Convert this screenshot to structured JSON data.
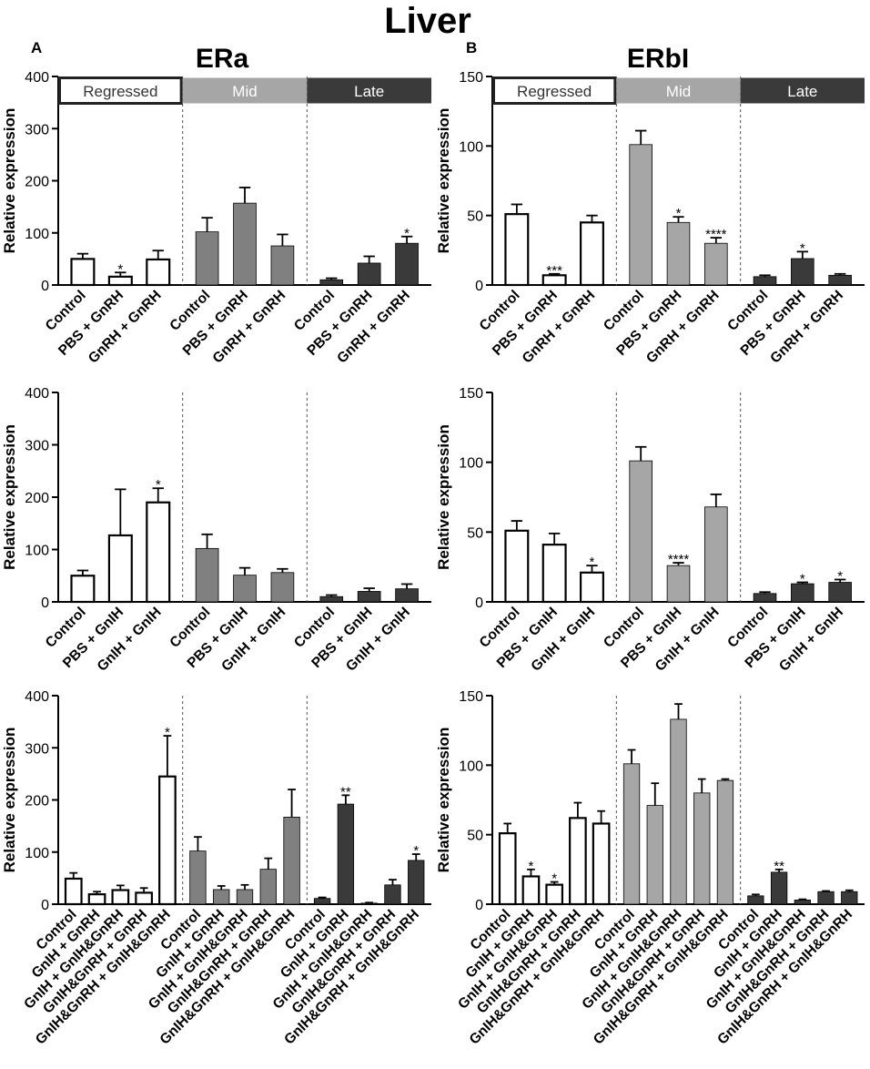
{
  "figure": {
    "title": "Liver",
    "panel_a": {
      "letter": "A",
      "title": "ERa"
    },
    "panel_b": {
      "letter": "B",
      "title": "ERbI"
    }
  },
  "stages": [
    {
      "label": "Regressed",
      "fill": "#ffffff",
      "text": "#333333"
    },
    {
      "label": "Mid",
      "fill": "#a6a6a6",
      "text": "#ffffff"
    },
    {
      "label": "Late",
      "fill": "#3a3a3a",
      "text": "#ffffff"
    }
  ],
  "colors": {
    "regressed_bar": "#ffffff",
    "era_mid_bar": "#808080",
    "erbi_mid_bar": "#a6a6a6",
    "late_bar": "#3a3a3a",
    "stroke": "#000000"
  },
  "chart_data": [
    {
      "id": "era-gnrh",
      "type": "bar",
      "title": "ERa",
      "ylabel": "Relative expression",
      "ylim": [
        0,
        400
      ],
      "yticks": [
        0,
        100,
        200,
        300,
        400
      ],
      "show_stage_header": true,
      "categories": [
        "Control",
        "PBS + GnRH",
        "GnRH + GnRH"
      ],
      "groups": [
        {
          "stage": "Regressed",
          "values": [
            50,
            16,
            49
          ],
          "errors": [
            10,
            8,
            17
          ],
          "sig": [
            "",
            "*",
            ""
          ]
        },
        {
          "stage": "Mid",
          "values": [
            102,
            157,
            75
          ],
          "errors": [
            27,
            30,
            22
          ],
          "sig": [
            "",
            "",
            ""
          ]
        },
        {
          "stage": "Late",
          "values": [
            10,
            42,
            80
          ],
          "errors": [
            3,
            13,
            13
          ],
          "sig": [
            "",
            "",
            "*"
          ]
        }
      ]
    },
    {
      "id": "erbi-gnrh",
      "type": "bar",
      "title": "ERbI",
      "ylabel": "Relative expression",
      "ylim": [
        0,
        150
      ],
      "yticks": [
        0,
        50,
        100,
        150
      ],
      "show_stage_header": true,
      "categories": [
        "Control",
        "PBS + GnRH",
        "GnRH + GnRH"
      ],
      "groups": [
        {
          "stage": "Regressed",
          "values": [
            51,
            7,
            45
          ],
          "errors": [
            7,
            1,
            5
          ],
          "sig": [
            "",
            "***",
            ""
          ]
        },
        {
          "stage": "Mid",
          "values": [
            101,
            45,
            30
          ],
          "errors": [
            10,
            4,
            4
          ],
          "sig": [
            "",
            "*",
            "****"
          ]
        },
        {
          "stage": "Late",
          "values": [
            6,
            19,
            7
          ],
          "errors": [
            1,
            5,
            1
          ],
          "sig": [
            "",
            "*",
            ""
          ]
        }
      ]
    },
    {
      "id": "era-gnih",
      "type": "bar",
      "title": "ERa",
      "ylabel": "Relative expression",
      "ylim": [
        0,
        400
      ],
      "yticks": [
        0,
        100,
        200,
        300,
        400
      ],
      "show_stage_header": false,
      "categories": [
        "Control",
        "PBS + GnIH",
        "GnIH + GnIH"
      ],
      "groups": [
        {
          "stage": "Regressed",
          "values": [
            50,
            127,
            190
          ],
          "errors": [
            10,
            88,
            27
          ],
          "sig": [
            "",
            "",
            "*"
          ]
        },
        {
          "stage": "Mid",
          "values": [
            102,
            51,
            56
          ],
          "errors": [
            27,
            14,
            7
          ],
          "sig": [
            "",
            "",
            ""
          ]
        },
        {
          "stage": "Late",
          "values": [
            10,
            20,
            25
          ],
          "errors": [
            3,
            6,
            9
          ],
          "sig": [
            "",
            "",
            ""
          ]
        }
      ]
    },
    {
      "id": "erbi-gnih",
      "type": "bar",
      "title": "ERbI",
      "ylabel": "Relative expression",
      "ylim": [
        0,
        150
      ],
      "yticks": [
        0,
        50,
        100,
        150
      ],
      "show_stage_header": false,
      "categories": [
        "Control",
        "PBS + GnIH",
        "GnIH + GnIH"
      ],
      "groups": [
        {
          "stage": "Regressed",
          "values": [
            51,
            41,
            21
          ],
          "errors": [
            7,
            8,
            5
          ],
          "sig": [
            "",
            "",
            "*"
          ]
        },
        {
          "stage": "Mid",
          "values": [
            101,
            26,
            68
          ],
          "errors": [
            10,
            2,
            9
          ],
          "sig": [
            "",
            "****",
            ""
          ]
        },
        {
          "stage": "Late",
          "values": [
            6,
            13,
            14
          ],
          "errors": [
            1,
            1,
            2
          ],
          "sig": [
            "",
            "*",
            "*"
          ]
        }
      ]
    },
    {
      "id": "era-combo",
      "type": "bar",
      "title": "ERa",
      "ylabel": "Relative expression",
      "ylim": [
        0,
        400
      ],
      "yticks": [
        0,
        100,
        200,
        300,
        400
      ],
      "show_stage_header": false,
      "categories": [
        "Control",
        "GnIH + GnRH",
        "GnIH + GnIH&GnRH",
        "GnIH&GnRH + GnRH",
        "GnIH&GnRH + GnIH&GnRH"
      ],
      "groups": [
        {
          "stage": "Regressed",
          "values": [
            49,
            19,
            27,
            22,
            245
          ],
          "errors": [
            11,
            5,
            9,
            9,
            78
          ],
          "sig": [
            "",
            "",
            "",
            "",
            "*"
          ]
        },
        {
          "stage": "Mid",
          "values": [
            102,
            28,
            28,
            67,
            167
          ],
          "errors": [
            27,
            7,
            9,
            21,
            53
          ],
          "sig": [
            "",
            "",
            "",
            "",
            ""
          ]
        },
        {
          "stage": "Late",
          "values": [
            11,
            192,
            2,
            37,
            84
          ],
          "errors": [
            2,
            17,
            1,
            10,
            12
          ],
          "sig": [
            "",
            "**",
            "",
            "",
            "*"
          ]
        }
      ]
    },
    {
      "id": "erbi-combo",
      "type": "bar",
      "title": "ERbI",
      "ylabel": "Relative expression",
      "ylim": [
        0,
        150
      ],
      "yticks": [
        0,
        50,
        100,
        150
      ],
      "show_stage_header": false,
      "categories": [
        "Control",
        "GnIH + GnRH",
        "GnIH + GnIH&GnRH",
        "GnIH&GnRH + GnRH",
        "GnIH&GnRH + GnIH&GnRH"
      ],
      "groups": [
        {
          "stage": "Regressed",
          "values": [
            51,
            20,
            14,
            62,
            58
          ],
          "errors": [
            7,
            5,
            2,
            11,
            9
          ],
          "sig": [
            "",
            "*",
            "*",
            "",
            ""
          ]
        },
        {
          "stage": "Mid",
          "values": [
            101,
            71,
            133,
            80,
            89
          ],
          "errors": [
            10,
            16,
            11,
            10,
            1
          ],
          "sig": [
            "",
            "",
            "",
            "",
            ""
          ]
        },
        {
          "stage": "Late",
          "values": [
            6,
            23,
            3,
            9,
            9
          ],
          "errors": [
            1,
            2,
            0.5,
            0.5,
            1
          ],
          "sig": [
            "",
            "**",
            "",
            "",
            ""
          ]
        }
      ]
    }
  ]
}
